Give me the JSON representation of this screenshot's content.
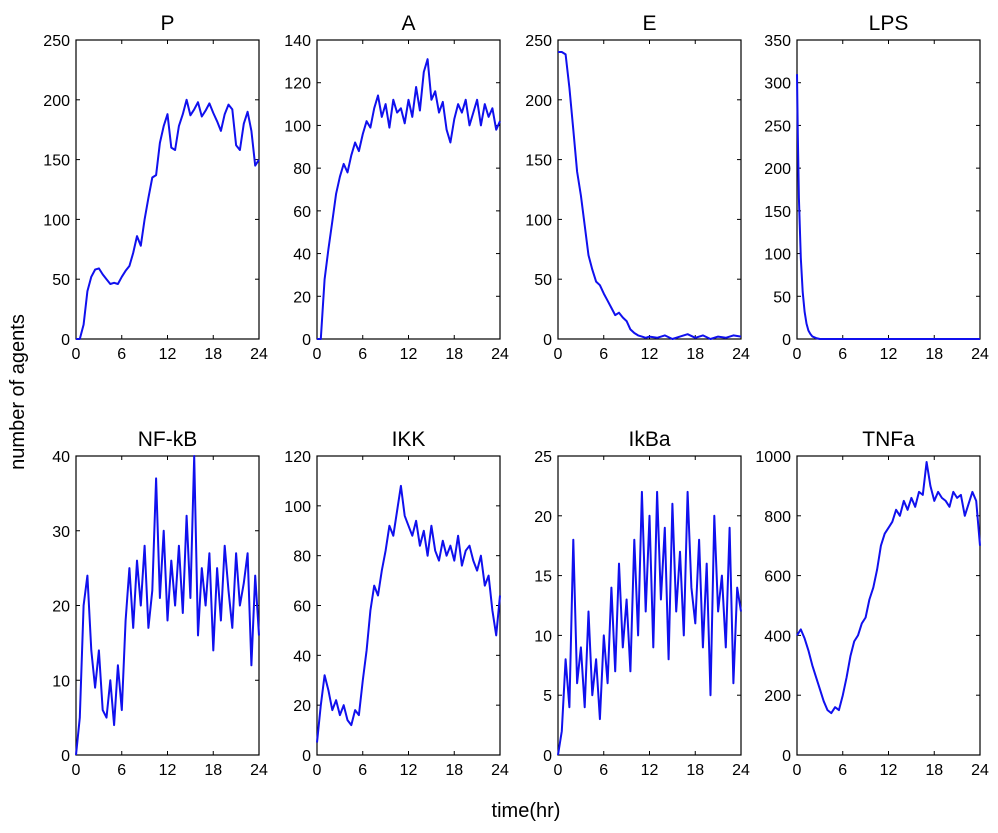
{
  "figure": {
    "ylabel": "number of agents",
    "xlabel": "time(hr)"
  },
  "colors": {
    "line": "#1010ee",
    "axis": "#000000",
    "background": "#ffffff"
  },
  "chart_data": [
    {
      "type": "line",
      "title": "P",
      "xlim": [
        0,
        24
      ],
      "ylim": [
        0,
        250
      ],
      "xticks": [
        0,
        6,
        12,
        18,
        24
      ],
      "yticks": [
        0,
        50,
        100,
        150,
        200,
        250
      ],
      "grid": false,
      "x": [
        0,
        0.5,
        1,
        1.5,
        2,
        2.5,
        3,
        3.5,
        4,
        4.5,
        5,
        5.5,
        6,
        6.5,
        7,
        7.5,
        8,
        8.5,
        9,
        9.5,
        10,
        10.5,
        11,
        11.5,
        12,
        12.5,
        13,
        13.5,
        14,
        14.5,
        15,
        15.5,
        16,
        16.5,
        17,
        17.5,
        18,
        18.5,
        19,
        19.5,
        20,
        20.5,
        21,
        21.5,
        22,
        22.5,
        23,
        23.5,
        24
      ],
      "y": [
        0,
        0,
        12,
        40,
        52,
        58,
        59,
        54,
        50,
        46,
        47,
        46,
        52,
        57,
        61,
        72,
        86,
        78,
        100,
        118,
        135,
        137,
        164,
        178,
        188,
        160,
        158,
        178,
        188,
        200,
        187,
        192,
        198,
        186,
        191,
        197,
        189,
        182,
        174,
        188,
        196,
        192,
        162,
        158,
        180,
        190,
        174,
        145,
        150
      ]
    },
    {
      "type": "line",
      "title": "A",
      "xlim": [
        0,
        24
      ],
      "ylim": [
        0,
        140
      ],
      "xticks": [
        0,
        6,
        12,
        18,
        24
      ],
      "yticks": [
        0,
        20,
        40,
        60,
        80,
        100,
        120,
        140
      ],
      "grid": false,
      "x": [
        0,
        0.5,
        1,
        1.5,
        2,
        2.5,
        3,
        3.5,
        4,
        4.5,
        5,
        5.5,
        6,
        6.5,
        7,
        7.5,
        8,
        8.5,
        9,
        9.5,
        10,
        10.5,
        11,
        11.5,
        12,
        12.5,
        13,
        13.5,
        14,
        14.5,
        15,
        15.5,
        16,
        16.5,
        17,
        17.5,
        18,
        18.5,
        19,
        19.5,
        20,
        20.5,
        21,
        21.5,
        22,
        22.5,
        23,
        23.5,
        24
      ],
      "y": [
        0,
        0,
        28,
        42,
        55,
        68,
        76,
        82,
        78,
        86,
        92,
        88,
        96,
        102,
        99,
        108,
        114,
        104,
        110,
        99,
        112,
        106,
        108,
        101,
        112,
        104,
        118,
        107,
        125,
        131,
        112,
        116,
        106,
        111,
        98,
        92,
        103,
        110,
        106,
        112,
        100,
        106,
        112,
        100,
        110,
        104,
        108,
        98,
        102
      ]
    },
    {
      "type": "line",
      "title": "E",
      "xlim": [
        0,
        24
      ],
      "ylim": [
        0,
        250
      ],
      "xticks": [
        0,
        6,
        12,
        18,
        24
      ],
      "yticks": [
        0,
        50,
        100,
        150,
        200,
        250
      ],
      "grid": false,
      "x": [
        0,
        0.5,
        1,
        1.5,
        2,
        2.5,
        3,
        3.5,
        4,
        4.5,
        5,
        5.5,
        6,
        6.5,
        7,
        7.5,
        8,
        8.5,
        9,
        9.5,
        10,
        10.5,
        11,
        11.5,
        12,
        13,
        14,
        15,
        16,
        17,
        18,
        19,
        20,
        21,
        22,
        23,
        24
      ],
      "y": [
        240,
        240,
        238,
        210,
        175,
        140,
        120,
        95,
        70,
        58,
        48,
        45,
        38,
        32,
        26,
        20,
        22,
        18,
        15,
        8,
        5,
        3,
        2,
        1,
        2,
        1,
        3,
        0,
        2,
        4,
        1,
        3,
        0,
        2,
        1,
        3,
        2
      ]
    },
    {
      "type": "line",
      "title": "LPS",
      "xlim": [
        0,
        24
      ],
      "ylim": [
        0,
        350
      ],
      "xticks": [
        0,
        6,
        12,
        18,
        24
      ],
      "yticks": [
        0,
        50,
        100,
        150,
        200,
        250,
        300,
        350
      ],
      "grid": false,
      "x": [
        0,
        0.1,
        0.25,
        0.5,
        0.75,
        1,
        1.25,
        1.5,
        1.75,
        2,
        2.5,
        3,
        4,
        6,
        12,
        18,
        24
      ],
      "y": [
        310,
        240,
        165,
        95,
        55,
        32,
        18,
        10,
        6,
        3,
        1,
        0,
        0,
        0,
        0,
        0,
        0
      ]
    },
    {
      "type": "line",
      "title": "NF-kB",
      "xlim": [
        0,
        24
      ],
      "ylim": [
        0,
        40
      ],
      "xticks": [
        0,
        6,
        12,
        18,
        24
      ],
      "yticks": [
        0,
        10,
        20,
        30,
        40
      ],
      "grid": false,
      "x": [
        0,
        0.5,
        1,
        1.5,
        2,
        2.5,
        3,
        3.5,
        4,
        4.5,
        5,
        5.5,
        6,
        6.5,
        7,
        7.5,
        8,
        8.5,
        9,
        9.5,
        10,
        10.5,
        11,
        11.5,
        12,
        12.5,
        13,
        13.5,
        14,
        14.5,
        15,
        15.5,
        16,
        16.5,
        17,
        17.5,
        18,
        18.5,
        19,
        19.5,
        20,
        20.5,
        21,
        21.5,
        22,
        22.5,
        23,
        23.5,
        24
      ],
      "y": [
        0,
        5,
        20,
        24,
        14,
        9,
        14,
        6,
        5,
        10,
        4,
        12,
        6,
        18,
        25,
        17,
        26,
        20,
        28,
        17,
        22,
        37,
        21,
        30,
        18,
        26,
        20,
        28,
        19,
        32,
        21,
        40,
        16,
        25,
        20,
        27,
        14,
        25,
        18,
        28,
        22,
        17,
        27,
        20,
        23,
        27,
        12,
        24,
        16
      ]
    },
    {
      "type": "line",
      "title": "IKK",
      "xlim": [
        0,
        24
      ],
      "ylim": [
        0,
        120
      ],
      "xticks": [
        0,
        6,
        12,
        18,
        24
      ],
      "yticks": [
        0,
        20,
        40,
        60,
        80,
        100,
        120
      ],
      "grid": false,
      "x": [
        0,
        0.5,
        1,
        1.5,
        2,
        2.5,
        3,
        3.5,
        4,
        4.5,
        5,
        5.5,
        6,
        6.5,
        7,
        7.5,
        8,
        8.5,
        9,
        9.5,
        10,
        10.5,
        11,
        11.5,
        12,
        12.5,
        13,
        13.5,
        14,
        14.5,
        15,
        15.5,
        16,
        16.5,
        17,
        17.5,
        18,
        18.5,
        19,
        19.5,
        20,
        20.5,
        21,
        21.5,
        22,
        22.5,
        23,
        23.5,
        24
      ],
      "y": [
        5,
        20,
        32,
        26,
        18,
        22,
        16,
        20,
        14,
        12,
        18,
        16,
        30,
        42,
        58,
        68,
        64,
        74,
        82,
        92,
        88,
        98,
        108,
        96,
        92,
        88,
        94,
        84,
        90,
        80,
        92,
        82,
        78,
        86,
        80,
        84,
        78,
        88,
        76,
        82,
        84,
        78,
        74,
        80,
        68,
        72,
        58,
        48,
        64
      ]
    },
    {
      "type": "line",
      "title": "IkBa",
      "xlim": [
        0,
        24
      ],
      "ylim": [
        0,
        25
      ],
      "xticks": [
        0,
        6,
        12,
        18,
        24
      ],
      "yticks": [
        0,
        5,
        10,
        15,
        20,
        25
      ],
      "grid": false,
      "x": [
        0,
        0.5,
        1,
        1.5,
        2,
        2.5,
        3,
        3.5,
        4,
        4.5,
        5,
        5.5,
        6,
        6.5,
        7,
        7.5,
        8,
        8.5,
        9,
        9.5,
        10,
        10.5,
        11,
        11.5,
        12,
        12.5,
        13,
        13.5,
        14,
        14.5,
        15,
        15.5,
        16,
        16.5,
        17,
        17.5,
        18,
        18.5,
        19,
        19.5,
        20,
        20.5,
        21,
        21.5,
        22,
        22.5,
        23,
        23.5,
        24
      ],
      "y": [
        0,
        2,
        8,
        4,
        18,
        6,
        9,
        4,
        12,
        5,
        8,
        3,
        10,
        6,
        14,
        7,
        16,
        9,
        13,
        7,
        18,
        10,
        22,
        12,
        20,
        9,
        22,
        13,
        19,
        8,
        21,
        12,
        17,
        10,
        22,
        14,
        11,
        18,
        9,
        16,
        5,
        20,
        12,
        15,
        9,
        19,
        6,
        14,
        12
      ]
    },
    {
      "type": "line",
      "title": "TNFa",
      "xlim": [
        0,
        24
      ],
      "ylim": [
        0,
        1000
      ],
      "xticks": [
        0,
        6,
        12,
        18,
        24
      ],
      "yticks": [
        0,
        200,
        400,
        600,
        800,
        1000
      ],
      "grid": false,
      "x": [
        0,
        0.5,
        1,
        1.5,
        2,
        2.5,
        3,
        3.5,
        4,
        4.5,
        5,
        5.5,
        6,
        6.5,
        7,
        7.5,
        8,
        8.5,
        9,
        9.5,
        10,
        10.5,
        11,
        11.5,
        12,
        12.5,
        13,
        13.5,
        14,
        14.5,
        15,
        15.5,
        16,
        16.5,
        17,
        17.5,
        18,
        18.5,
        19,
        19.5,
        20,
        20.5,
        21,
        21.5,
        22,
        22.5,
        23,
        23.5,
        24
      ],
      "y": [
        400,
        420,
        390,
        350,
        300,
        260,
        220,
        180,
        150,
        140,
        160,
        150,
        200,
        260,
        330,
        380,
        400,
        440,
        460,
        520,
        560,
        620,
        700,
        740,
        760,
        780,
        820,
        800,
        850,
        820,
        860,
        830,
        880,
        870,
        980,
        900,
        850,
        880,
        860,
        850,
        830,
        880,
        860,
        870,
        800,
        840,
        880,
        850,
        700
      ]
    }
  ]
}
